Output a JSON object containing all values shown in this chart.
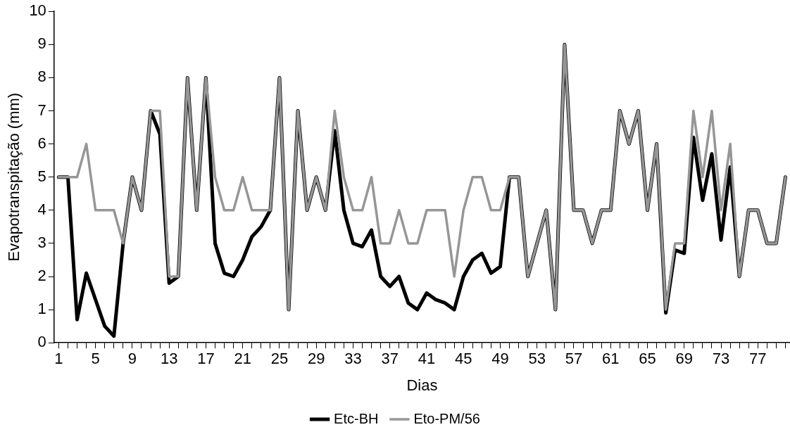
{
  "chart_data": {
    "type": "line",
    "xlabel": "Dias",
    "ylabel": "Evapotranspitação (mm)",
    "categories": [
      "1",
      null,
      null,
      null,
      "5",
      null,
      null,
      null,
      "9",
      null,
      null,
      null,
      "13",
      null,
      null,
      null,
      "17",
      null,
      null,
      null,
      "21",
      null,
      null,
      null,
      "25",
      null,
      null,
      null,
      "29",
      null,
      null,
      null,
      "33",
      null,
      null,
      null,
      "37",
      null,
      null,
      null,
      "41",
      null,
      null,
      null,
      "45",
      null,
      null,
      null,
      "49",
      null,
      null,
      null,
      "53",
      null,
      null,
      null,
      "57",
      null,
      null,
      null,
      "61",
      null,
      null,
      null,
      "65",
      null,
      null,
      null,
      "69",
      null,
      null,
      null,
      "73",
      null,
      null,
      null,
      "77",
      null,
      null,
      null
    ],
    "series": [
      {
        "name": "Etc-BH",
        "color": "#000000",
        "values": [
          5,
          5,
          0.7,
          2.1,
          1.3,
          0.5,
          0.2,
          3,
          5,
          4,
          7,
          6.3,
          1.8,
          2,
          8,
          4,
          8,
          3,
          2.1,
          2,
          2.5,
          3.2,
          3.5,
          4,
          8,
          1,
          7,
          4,
          5,
          4,
          6.4,
          4,
          3,
          2.9,
          3.4,
          2,
          1.7,
          2,
          1.2,
          1,
          1.5,
          1.3,
          1.2,
          1,
          2,
          2.5,
          2.7,
          2.1,
          2.3,
          5,
          5,
          2,
          3,
          4,
          1,
          9,
          4,
          4,
          3,
          4,
          4,
          7,
          6,
          7,
          4,
          6,
          0.9,
          2.8,
          2.7,
          6.2,
          4.3,
          5.7,
          3.1,
          5.3,
          2,
          4,
          4,
          3,
          3,
          5
        ]
      },
      {
        "name": "Eto-PM/56",
        "color": "#969696",
        "values": [
          5,
          5,
          5,
          6,
          4,
          4,
          4,
          3,
          5,
          4,
          7,
          7,
          2,
          2,
          8,
          4,
          8,
          5,
          4,
          4,
          5,
          4,
          4,
          4,
          8,
          1,
          7,
          4,
          5,
          4,
          7,
          5,
          4,
          4,
          5,
          3,
          3,
          4,
          3,
          3,
          4,
          4,
          4,
          2,
          4,
          5,
          5,
          4,
          4,
          5,
          5,
          2,
          3,
          4,
          1,
          9,
          4,
          4,
          3,
          4,
          4,
          7,
          6,
          7,
          4,
          6,
          1,
          3,
          3,
          7,
          5,
          7,
          4,
          6,
          2,
          4,
          4,
          3,
          3,
          5
        ]
      }
    ],
    "ylim": [
      0,
      10
    ],
    "yticks": [
      0,
      1,
      2,
      3,
      4,
      5,
      6,
      7,
      8,
      9,
      10
    ],
    "grid": false,
    "legend": "bottom",
    "marker": "none",
    "line_style": "solid"
  }
}
